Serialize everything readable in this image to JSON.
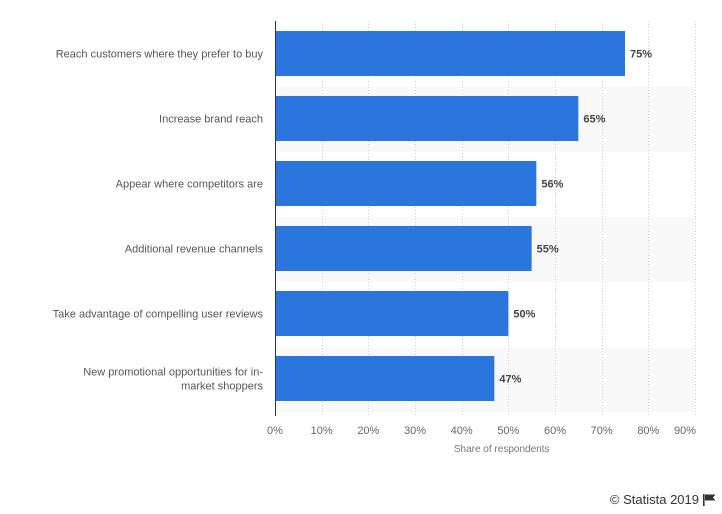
{
  "chart_data": {
    "type": "bar",
    "orientation": "horizontal",
    "categories": [
      [
        "Reach customers where they prefer to buy"
      ],
      [
        "Increase brand reach"
      ],
      [
        "Appear where competitors are"
      ],
      [
        "Additional revenue channels"
      ],
      [
        "Take advantage of compelling user reviews"
      ],
      [
        "New promotional opportunities for in-",
        "market shoppers"
      ]
    ],
    "values": [
      75,
      65,
      56,
      55,
      50,
      47
    ],
    "value_labels": [
      "75%",
      "65%",
      "56%",
      "55%",
      "50%",
      "47%"
    ],
    "xlabel": "Share of respondents",
    "xlim": [
      0,
      90
    ],
    "xticks": [
      0,
      10,
      20,
      30,
      40,
      50,
      60,
      70,
      80,
      90
    ],
    "xtick_labels": [
      "0%",
      "10%",
      "20%",
      "30%",
      "40%",
      "50%",
      "60%",
      "70%",
      "80%",
      "90%"
    ],
    "grid": true,
    "bar_color": "#2a76dd"
  },
  "footer": {
    "copyright": "© Statista 2019",
    "flag_icon": "flag-icon"
  }
}
